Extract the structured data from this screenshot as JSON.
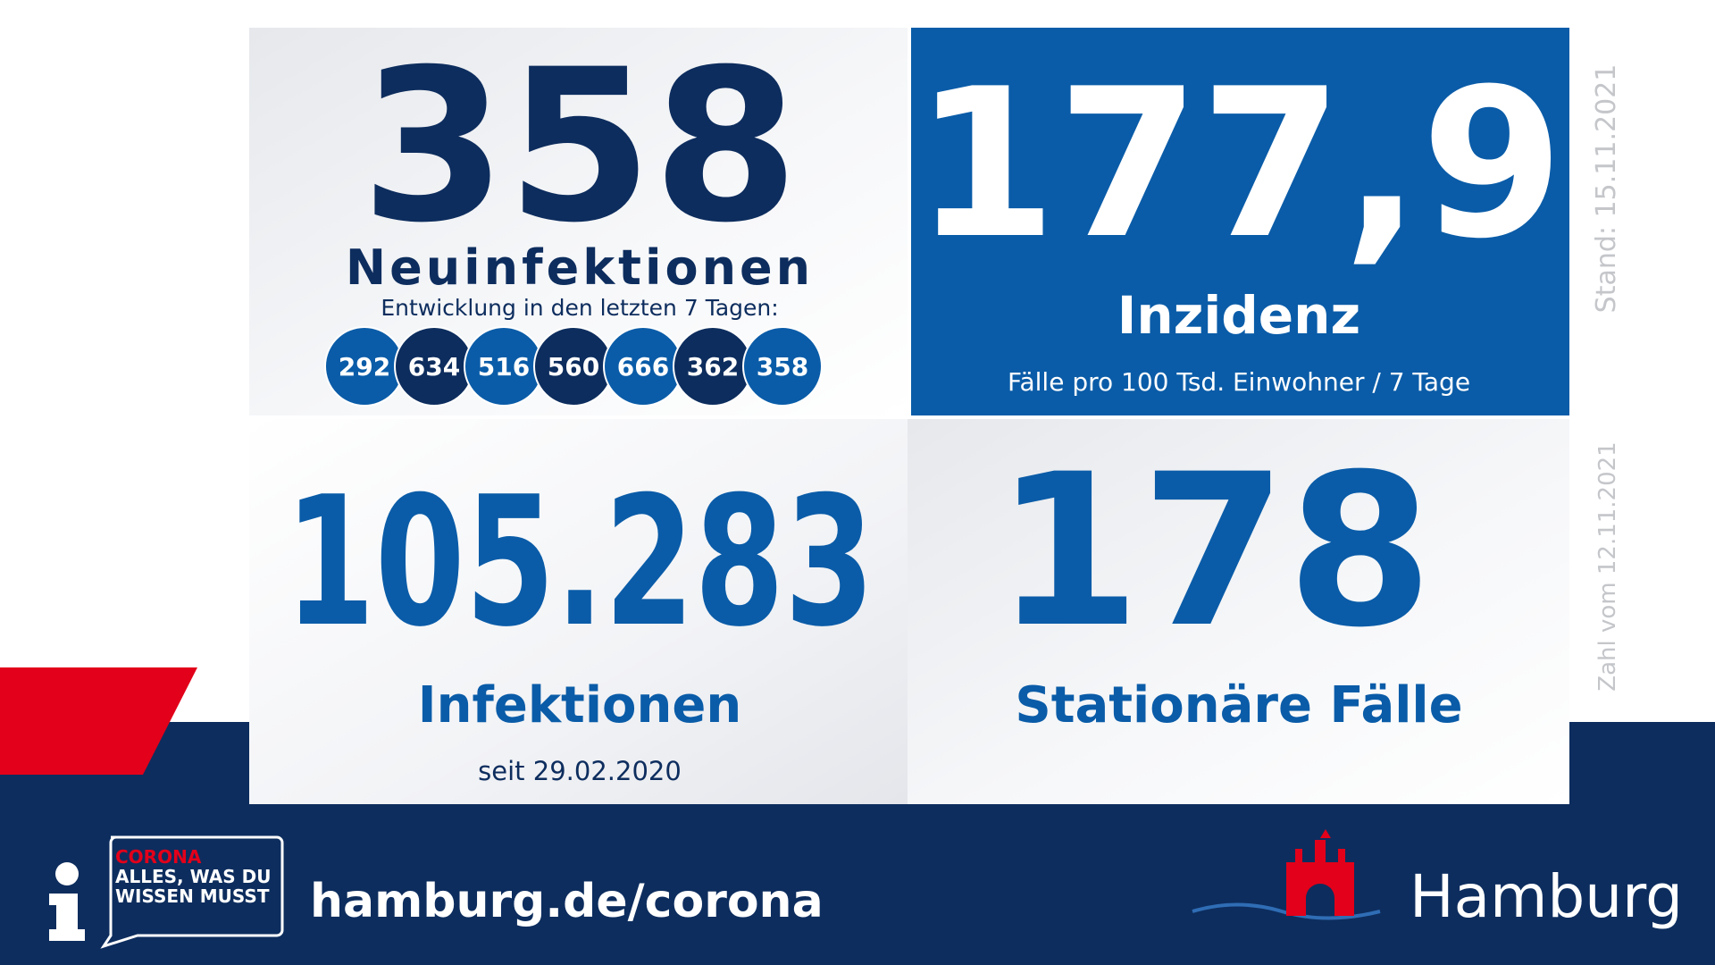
{
  "new_infections": {
    "value": "358",
    "label": "Neuinfektionen",
    "subtitle": "Entwicklung in den letzten 7 Tagen:",
    "last_7_days": [
      292,
      634,
      516,
      560,
      666,
      362,
      358
    ]
  },
  "incidence": {
    "value": "177,9",
    "label": "Inzidenz",
    "subtitle": "Fälle pro 100 Tsd. Einwohner / 7 Tage"
  },
  "total_infections": {
    "value": "105.283",
    "label": "Infektionen",
    "subtitle": "seit 29.02.2020"
  },
  "hospitalized": {
    "value": "178",
    "label": "Stationäre Fälle"
  },
  "side_notes": {
    "date_top": "Stand: 15.11.2021",
    "date_bottom": "Zahl vom 12.11.2021"
  },
  "footer": {
    "badge_line1": "CORONA",
    "badge_line2": "ALLES, WAS DU",
    "badge_line3": "WISSEN MUSST",
    "url": "hamburg.de/corona",
    "brand": "Hamburg"
  }
}
